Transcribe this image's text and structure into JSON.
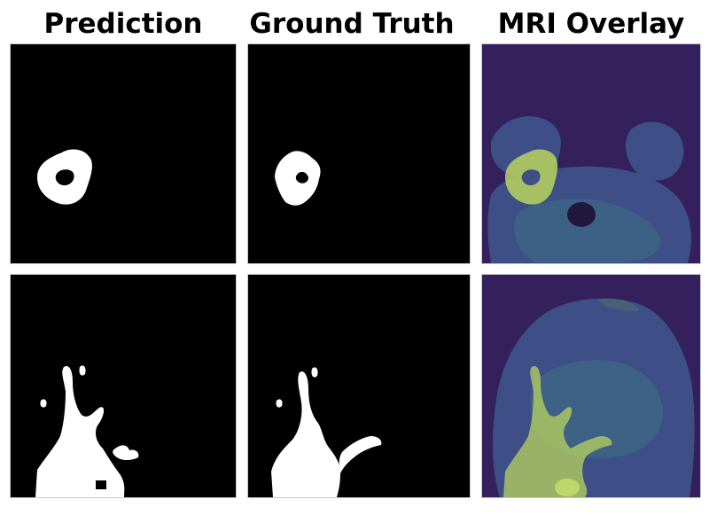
{
  "columns": {
    "prediction": "Prediction",
    "ground_truth": "Ground Truth",
    "mri_overlay": "MRI Overlay"
  },
  "colors": {
    "mask_background": "#000000",
    "mask_foreground": "#ffffff",
    "mri_background": "#33205c",
    "mri_tissue": "#3d4f86",
    "mri_tissue_light": "#3e6f86",
    "overlay_highlight": "#b9d35d"
  }
}
